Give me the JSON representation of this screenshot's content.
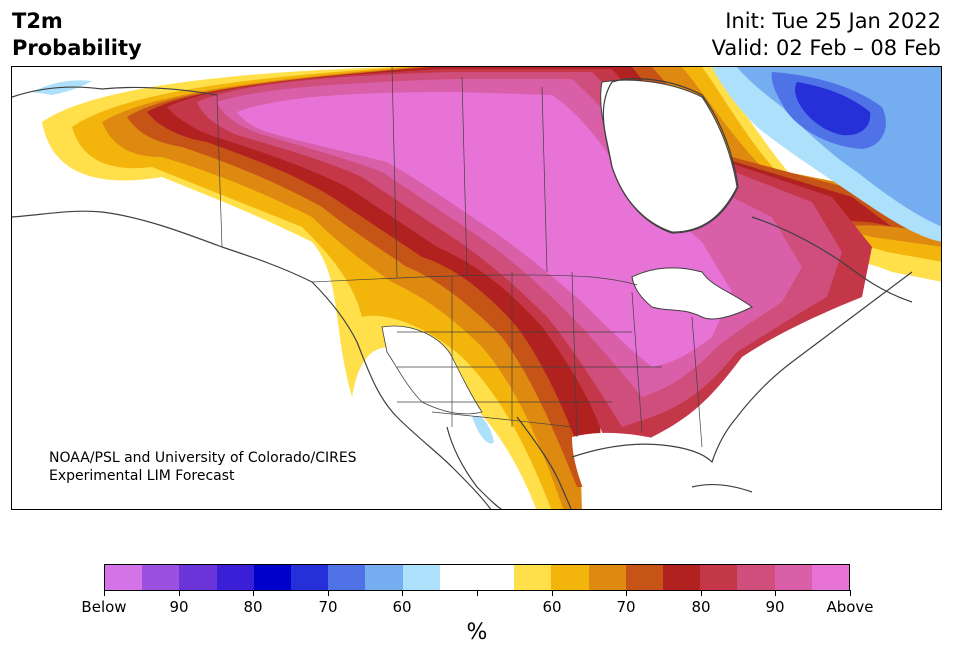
{
  "title": {
    "left_line1": "T2m",
    "left_line2": "Probability",
    "right_line1": "Init: Tue 25 Jan 2022",
    "right_line2": "Valid: 02 Feb – 08 Feb"
  },
  "credit": {
    "line1": "NOAA/PSL and University of Colorado/CIRES",
    "line2": "Experimental LIM Forecast"
  },
  "colorbar": {
    "unit": "%",
    "colors": [
      "#d573e9",
      "#9b50df",
      "#6b35d9",
      "#3a1fd6",
      "#0000cc",
      "#2530d8",
      "#4f72e6",
      "#74aef0",
      "#ade0fb",
      "#ffffff",
      "#ffffff",
      "#ffe04a",
      "#f3b40c",
      "#de8a10",
      "#c65417",
      "#b0211f",
      "#c33749",
      "#cf4e7c",
      "#d95fa8",
      "#e773d7"
    ],
    "tick_labels": [
      "Below",
      "90",
      "80",
      "70",
      "60",
      "",
      "60",
      "70",
      "80",
      "90",
      "Above"
    ]
  },
  "map": {
    "legend_colors": {
      "above_high": "#e773d7",
      "above_90": "#d95fa8",
      "above_85": "#cf4e7c",
      "above_80": "#c33749",
      "above_75": "#b0211f",
      "above_70": "#c65417",
      "above_65": "#de8a10",
      "above_60": "#f3b40c",
      "above_55": "#ffe04a",
      "below_60": "#ade0fb",
      "below_65": "#74aef0",
      "below_70": "#4f72e6",
      "below_80": "#2530d8",
      "coast": "#404040"
    }
  }
}
